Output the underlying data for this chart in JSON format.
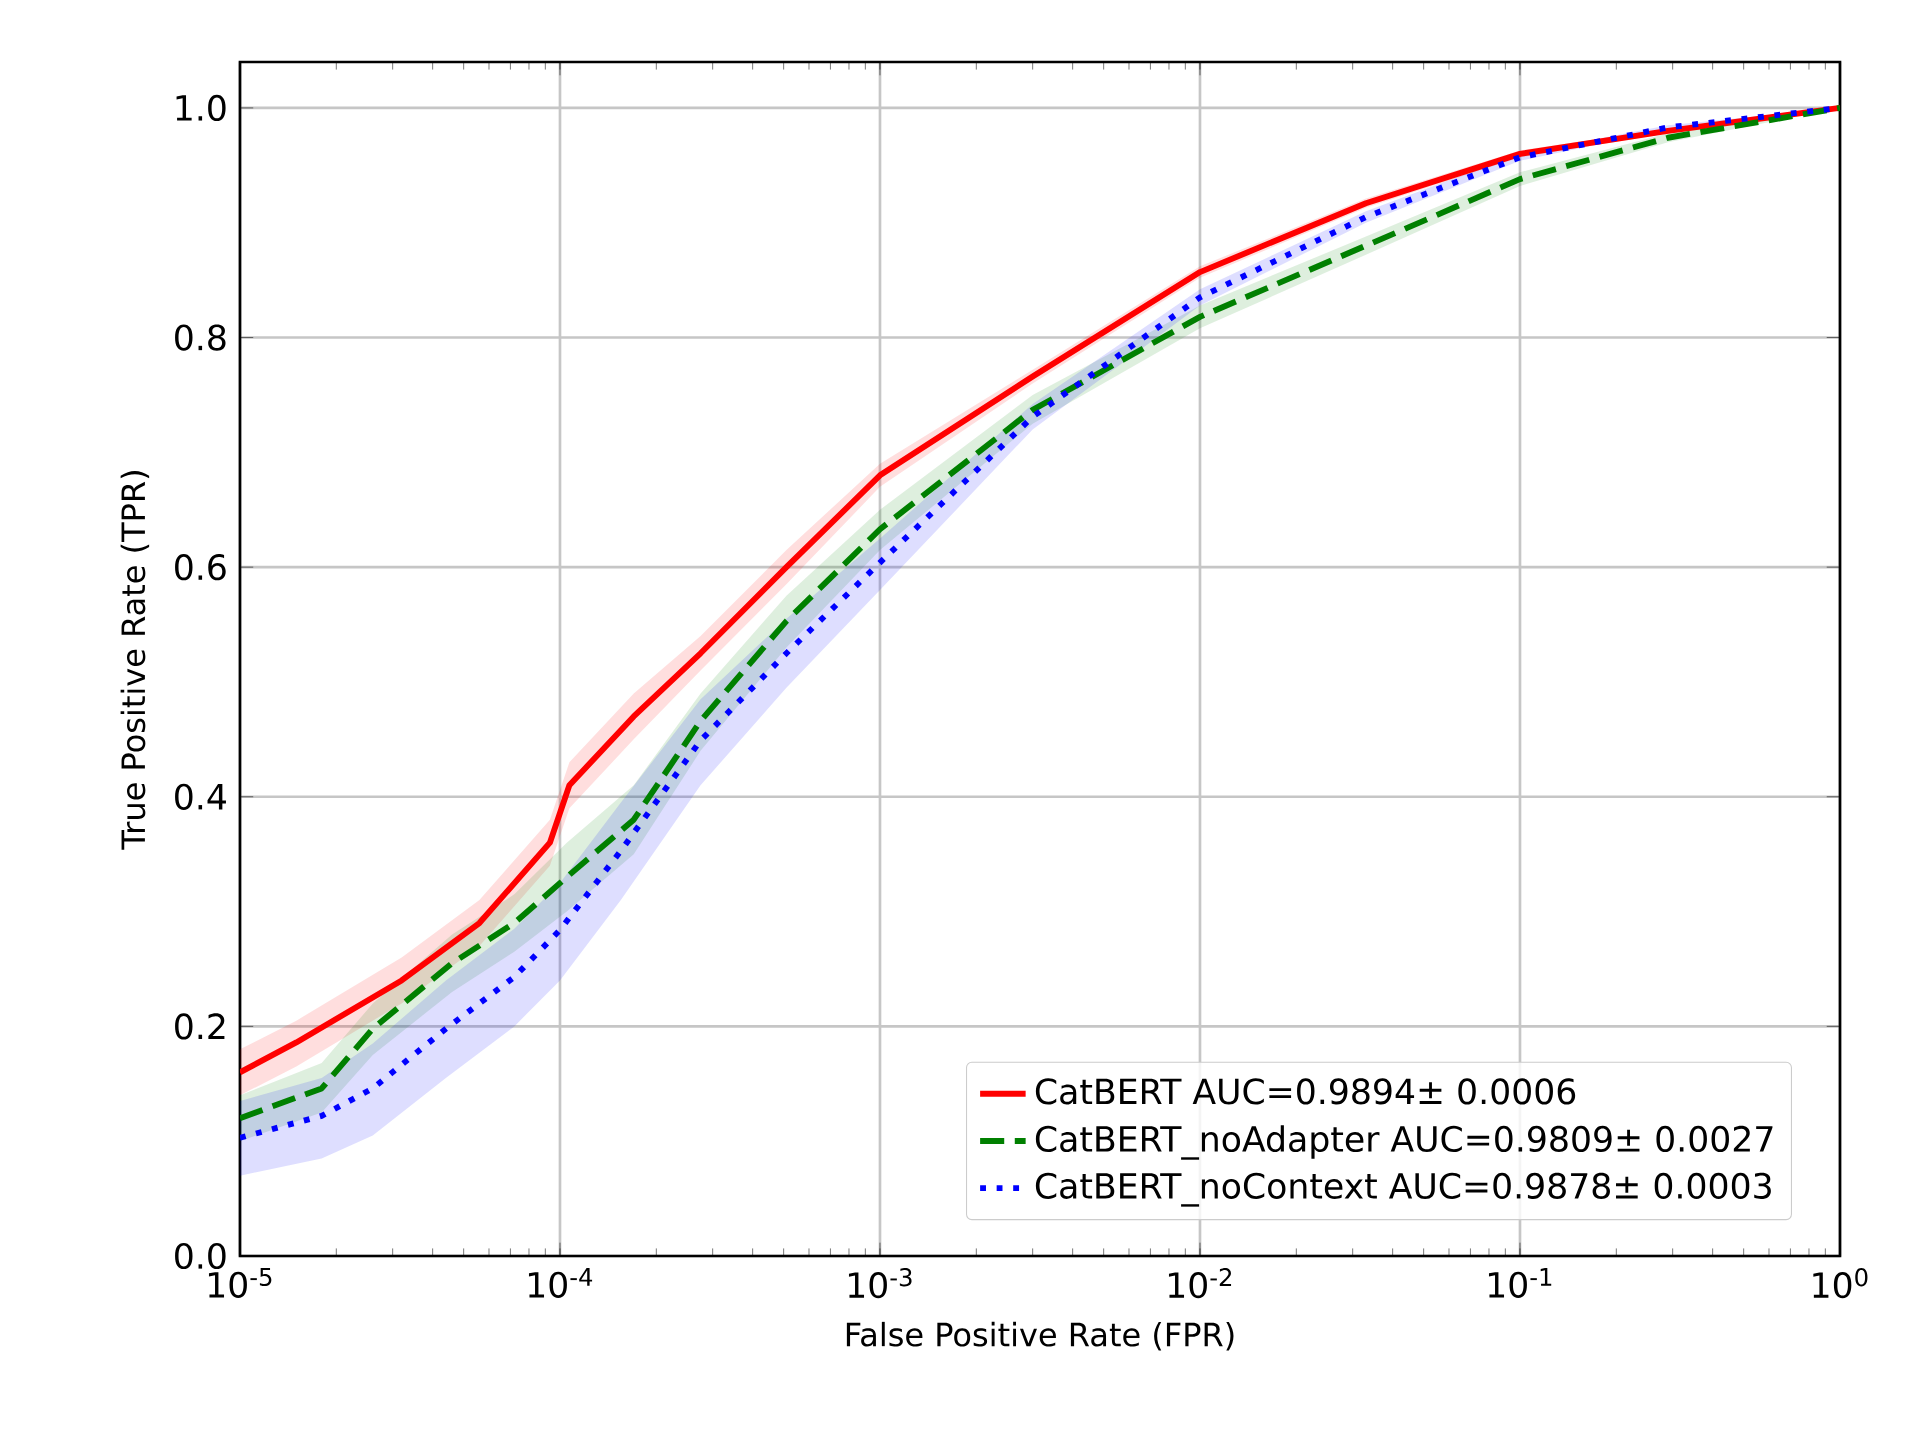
{
  "chart_data": {
    "type": "line",
    "xlabel": "False Positive Rate (FPR)",
    "ylabel": "True Positive Rate (TPR)",
    "log": "x",
    "grid": true,
    "legend": "bottom right",
    "xlim": [
      1e-05,
      1
    ],
    "ylim": [
      0,
      1.04
    ],
    "xticks": [
      {
        "value": 1e-05,
        "label": "10$^{-5}$"
      },
      {
        "value": 0.0001,
        "label": "10$^{-4}$"
      },
      {
        "value": 0.001,
        "label": "10$^{-3}$"
      },
      {
        "value": 0.01,
        "label": "10$^{-2}$"
      },
      {
        "value": 0.1,
        "label": "10$^{-1}$"
      },
      {
        "value": 1,
        "label": "10$^{0}$"
      }
    ],
    "yticks": [
      {
        "value": 0,
        "label": "0.0"
      },
      {
        "value": 0.2,
        "label": "0.2"
      },
      {
        "value": 0.4,
        "label": "0.4"
      },
      {
        "value": 0.6,
        "label": "0.6"
      },
      {
        "value": 0.8,
        "label": "0.8"
      },
      {
        "value": 1,
        "label": "1.0"
      }
    ],
    "series": [
      {
        "name": "CatBERT AUC=0.9894± 0.0006",
        "color": "#ff0000",
        "line_style": "solid",
        "x": [
          1e-05,
          1.5e-05,
          3.2e-05,
          5.6e-05,
          9.3e-05,
          0.000107,
          0.00017,
          0.000275,
          0.00051,
          0.001,
          0.003,
          0.01,
          0.033,
          0.1,
          0.29,
          1
        ],
        "values": [
          0.16,
          0.186,
          0.24,
          0.29,
          0.36,
          0.41,
          0.47,
          0.525,
          0.6,
          0.68,
          0.766,
          0.857,
          0.917,
          0.96,
          0.98,
          1.0
        ],
        "lower": [
          0.14,
          0.165,
          0.22,
          0.27,
          0.34,
          0.39,
          0.45,
          0.51,
          0.585,
          0.67,
          0.76,
          0.852,
          0.913,
          0.957,
          0.978,
          1.0
        ],
        "upper": [
          0.18,
          0.205,
          0.26,
          0.31,
          0.38,
          0.43,
          0.49,
          0.54,
          0.615,
          0.69,
          0.772,
          0.862,
          0.921,
          0.963,
          0.982,
          1.0
        ]
      },
      {
        "name": "CatBERT_noAdapter AUC=0.9809± 0.0027",
        "color": "#008000",
        "line_style": "dashed",
        "x": [
          1e-05,
          1.8e-05,
          2.6e-05,
          4.6e-05,
          7.2e-05,
          0.000105,
          0.00017,
          0.000275,
          0.00051,
          0.001,
          0.003,
          0.01,
          0.033,
          0.1,
          0.29,
          1
        ],
        "values": [
          0.12,
          0.146,
          0.198,
          0.255,
          0.29,
          0.33,
          0.38,
          0.466,
          0.553,
          0.633,
          0.737,
          0.818,
          0.88,
          0.938,
          0.974,
          1.0
        ],
        "lower": [
          0.1,
          0.125,
          0.175,
          0.23,
          0.265,
          0.3,
          0.35,
          0.44,
          0.53,
          0.615,
          0.725,
          0.808,
          0.872,
          0.932,
          0.97,
          1.0
        ],
        "upper": [
          0.14,
          0.168,
          0.22,
          0.28,
          0.315,
          0.36,
          0.41,
          0.49,
          0.575,
          0.65,
          0.75,
          0.828,
          0.888,
          0.944,
          0.978,
          1.0
        ]
      },
      {
        "name": "CatBERT_noContext AUC=0.9878± 0.0003",
        "color": "#0000ff",
        "line_style": "dotted",
        "x": [
          1e-05,
          1.8e-05,
          2.6e-05,
          4.4e-05,
          7.2e-05,
          0.0001,
          0.000155,
          0.000275,
          0.00051,
          0.001,
          0.003,
          0.01,
          0.033,
          0.1,
          0.29,
          1
        ],
        "values": [
          0.103,
          0.122,
          0.146,
          0.198,
          0.243,
          0.284,
          0.353,
          0.449,
          0.525,
          0.604,
          0.731,
          0.835,
          0.905,
          0.957,
          0.983,
          1.0
        ],
        "lower": [
          0.07,
          0.085,
          0.105,
          0.155,
          0.2,
          0.24,
          0.31,
          0.41,
          0.495,
          0.58,
          0.72,
          0.828,
          0.9,
          0.954,
          0.981,
          1.0
        ],
        "upper": [
          0.135,
          0.155,
          0.185,
          0.24,
          0.285,
          0.325,
          0.395,
          0.485,
          0.555,
          0.625,
          0.742,
          0.842,
          0.91,
          0.96,
          0.985,
          1.0
        ]
      }
    ]
  }
}
